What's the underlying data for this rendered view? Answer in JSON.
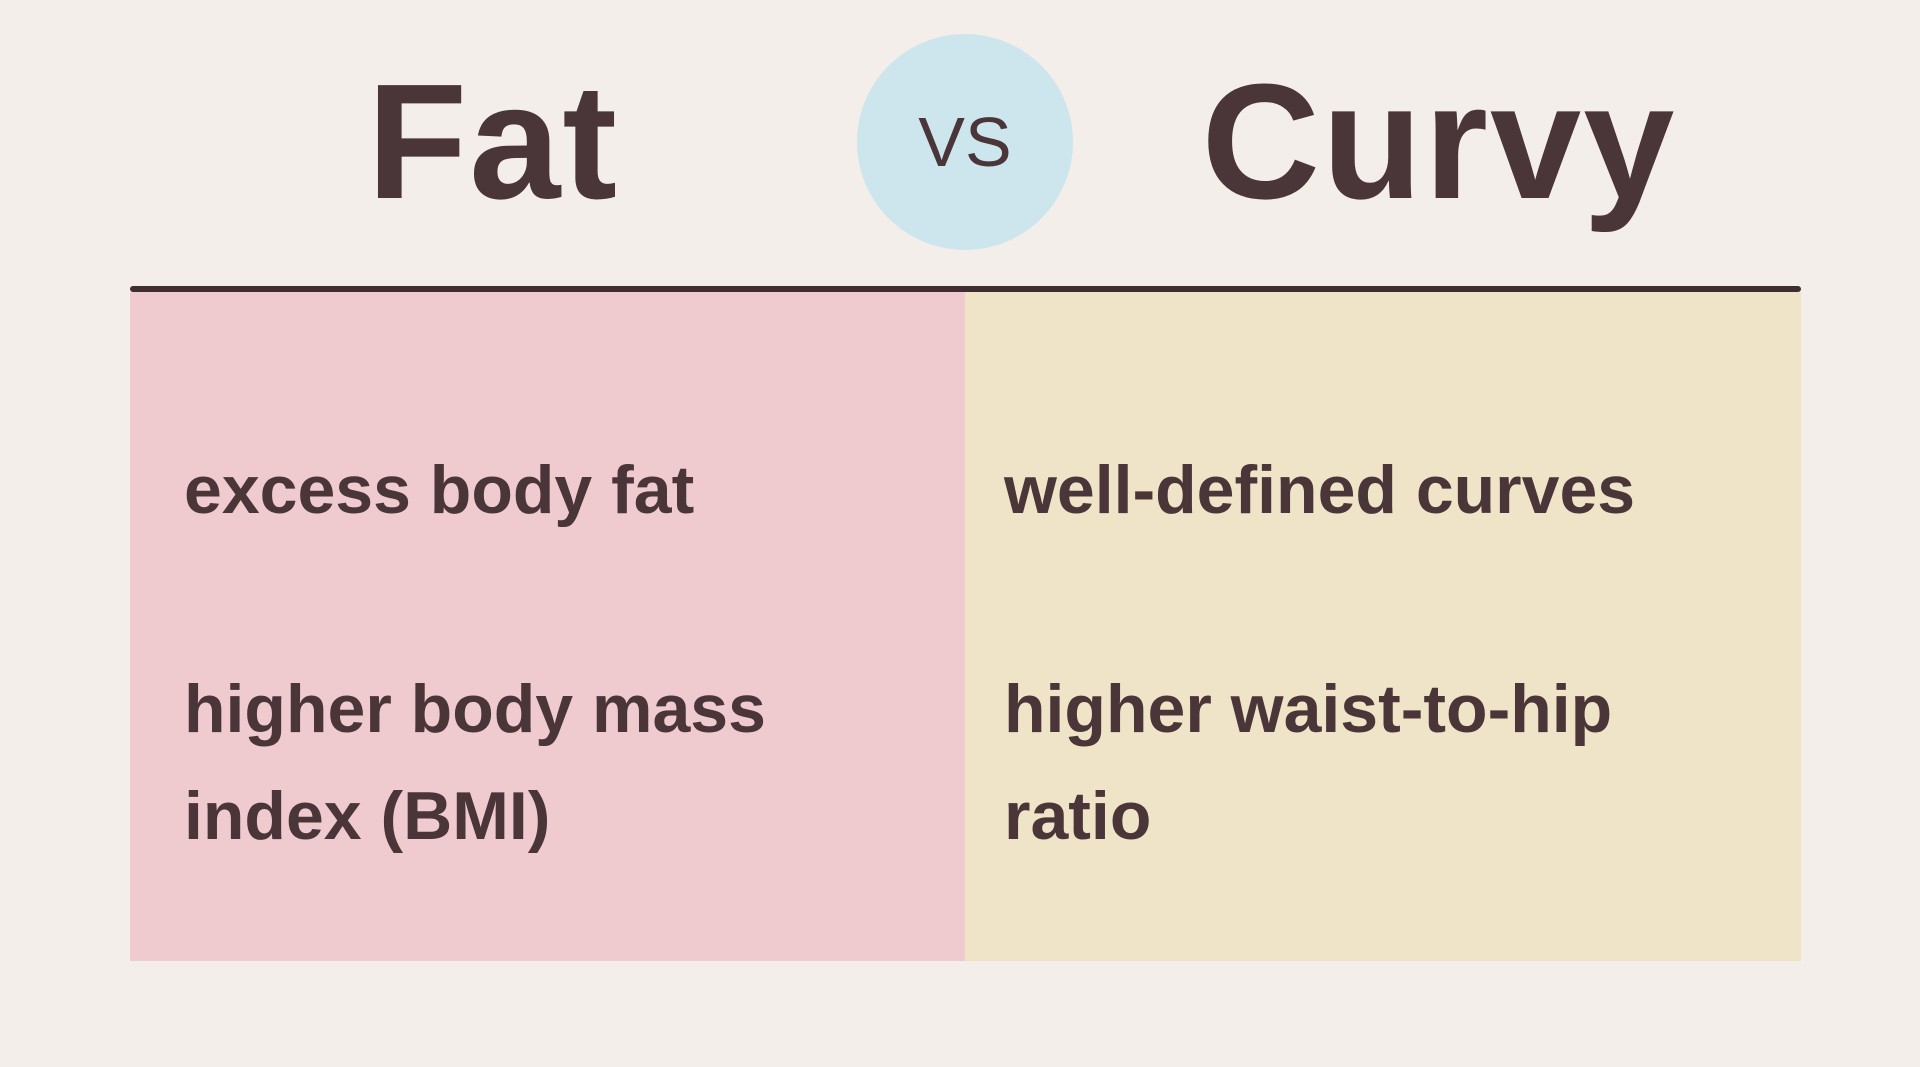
{
  "title": {
    "left": "Fat",
    "vs": "VS",
    "right": "Curvy"
  },
  "table": {
    "rows": [
      [
        "excess body fat",
        "well-defined curves"
      ],
      [
        "higher body mass index (BMI)",
        "higher waist-to-hip ratio"
      ]
    ]
  }
}
